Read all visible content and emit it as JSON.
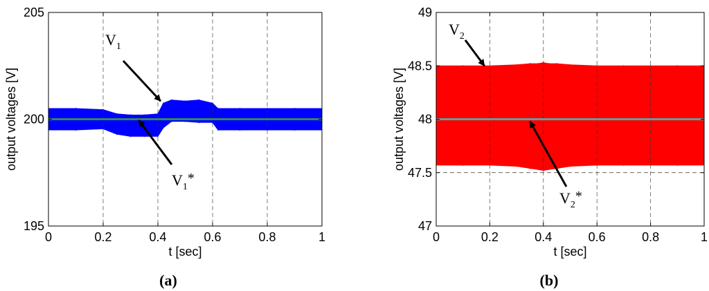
{
  "chart_data": [
    {
      "type": "area",
      "panel_label": "(a)",
      "xlabel": "t [sec]",
      "ylabel": "output voltages [V]",
      "xlim": [
        0,
        1
      ],
      "ylim": [
        195,
        205
      ],
      "xticks": [
        0,
        0.2,
        0.4,
        0.6,
        0.8,
        1
      ],
      "xtick_labels": [
        "0",
        "0.2",
        "0.4",
        "0.6",
        "0.8",
        "1"
      ],
      "yticks": [
        195,
        200,
        205
      ],
      "ytick_labels": [
        "195",
        "200",
        "205"
      ],
      "grid": "vertical dashed",
      "reference": {
        "value": 200,
        "color": "#2e8b57"
      },
      "series": [
        {
          "color": "#0000ff",
          "x": [
            0,
            0.1,
            0.2,
            0.25,
            0.3,
            0.35,
            0.4,
            0.42,
            0.45,
            0.5,
            0.55,
            0.6,
            0.62,
            0.7,
            0.8,
            0.9,
            1
          ],
          "upper": [
            200.5,
            200.5,
            200.45,
            200.25,
            200.2,
            200.2,
            200.25,
            200.75,
            200.9,
            200.85,
            200.9,
            200.75,
            200.5,
            200.5,
            200.5,
            200.5,
            200.5
          ],
          "lower": [
            199.5,
            199.5,
            199.55,
            199.3,
            199.2,
            199.2,
            199.2,
            199.6,
            199.9,
            199.9,
            199.85,
            199.85,
            199.5,
            199.5,
            199.5,
            199.5,
            199.5
          ]
        }
      ],
      "annotations": [
        {
          "main": "V",
          "sub": "1",
          "sup": "",
          "arrow_to": [
            0.41,
            200.85
          ]
        },
        {
          "main": "V",
          "sub": "1",
          "sup": "*",
          "arrow_to": [
            0.33,
            199.95
          ]
        }
      ]
    },
    {
      "type": "area",
      "panel_label": "(b)",
      "xlabel": "t [sec]",
      "ylabel": "output voltages [V]",
      "xlim": [
        0,
        1
      ],
      "ylim": [
        47,
        49
      ],
      "xticks": [
        0,
        0.2,
        0.4,
        0.6,
        0.8,
        1
      ],
      "xtick_labels": [
        "0",
        "0.2",
        "0.4",
        "0.6",
        "0.8",
        "1"
      ],
      "yticks": [
        47,
        47.5,
        48,
        48.5,
        49
      ],
      "ytick_labels": [
        "47",
        "47.5",
        "48",
        "48.5",
        "49"
      ],
      "grid": "vertical dashed",
      "reference": {
        "value": 48,
        "color": "#5f9ea0"
      },
      "hlines": [
        47.5
      ],
      "series": [
        {
          "color": "#ff0000",
          "x": [
            0,
            0.1,
            0.2,
            0.3,
            0.35,
            0.38,
            0.4,
            0.42,
            0.45,
            0.5,
            0.6,
            0.7,
            0.8,
            0.9,
            1
          ],
          "upper": [
            48.5,
            48.5,
            48.5,
            48.51,
            48.52,
            48.52,
            48.53,
            48.52,
            48.52,
            48.51,
            48.5,
            48.5,
            48.5,
            48.5,
            48.5
          ],
          "lower": [
            47.57,
            47.57,
            47.57,
            47.56,
            47.54,
            47.53,
            47.52,
            47.53,
            47.54,
            47.56,
            47.57,
            47.57,
            47.57,
            47.57,
            47.57
          ]
        }
      ],
      "annotations": [
        {
          "main": "V",
          "sub": "2",
          "sup": "",
          "arrow_to": [
            0.18,
            48.5
          ]
        },
        {
          "main": "V",
          "sub": "2",
          "sup": "*",
          "arrow_to": [
            0.35,
            47.98
          ]
        }
      ]
    }
  ]
}
